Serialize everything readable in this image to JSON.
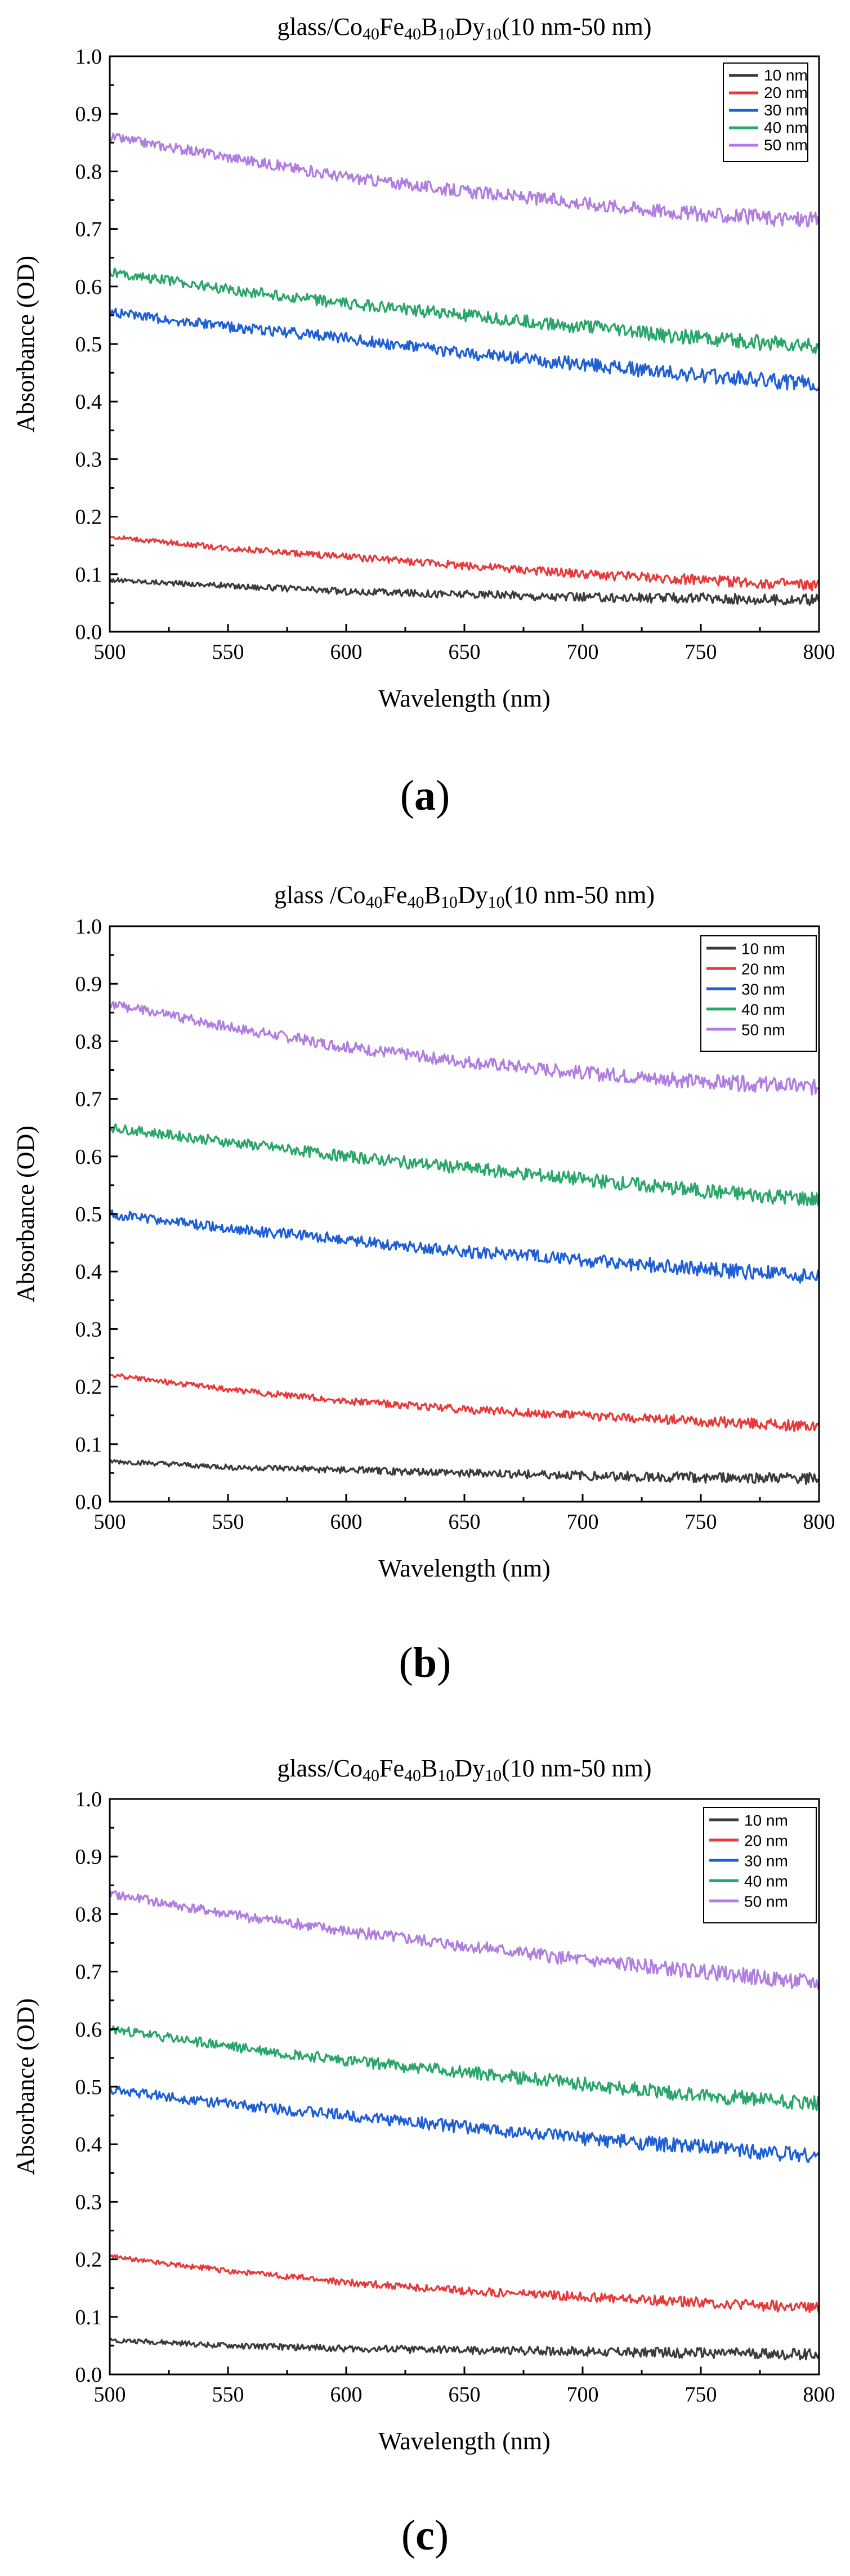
{
  "chart_data": [
    {
      "type": "line",
      "panel_label_letter": "a",
      "title": {
        "prefix": "glass/Co",
        "s1": "40",
        "t1": "Fe",
        "s2": "40",
        "t2": "B",
        "s3": "10",
        "t3": "Dy",
        "s4": "10",
        "suffix": "(10 nm-50 nm)"
      },
      "xlabel": "Wavelength (nm)",
      "ylabel": "Absorbance (OD)",
      "xlim": [
        500,
        800
      ],
      "ylim": [
        0.0,
        1.0
      ],
      "xticks": [
        "500",
        "550",
        "600",
        "650",
        "700",
        "750",
        "800"
      ],
      "yticks": [
        "0.0",
        "0.1",
        "0.2",
        "0.3",
        "0.4",
        "0.5",
        "0.6",
        "0.7",
        "0.8",
        "0.9",
        "1.0"
      ],
      "legend": "top-right",
      "series": [
        {
          "name": "10 nm",
          "color": "#3b3b3b",
          "x": [
            500,
            550,
            600,
            650,
            700,
            750,
            800
          ],
          "y": [
            0.09,
            0.08,
            0.07,
            0.065,
            0.06,
            0.058,
            0.055
          ]
        },
        {
          "name": "20 nm",
          "color": "#e8393a",
          "x": [
            500,
            550,
            600,
            650,
            700,
            750,
            800
          ],
          "y": [
            0.165,
            0.145,
            0.13,
            0.115,
            0.1,
            0.09,
            0.08
          ]
        },
        {
          "name": "30 nm",
          "color": "#1f5fd6",
          "x": [
            500,
            550,
            600,
            650,
            700,
            750,
            800
          ],
          "y": [
            0.555,
            0.53,
            0.51,
            0.485,
            0.465,
            0.445,
            0.43
          ]
        },
        {
          "name": "40 nm",
          "color": "#2aa66a",
          "x": [
            500,
            550,
            600,
            650,
            700,
            750,
            800
          ],
          "y": [
            0.625,
            0.595,
            0.57,
            0.55,
            0.53,
            0.51,
            0.495
          ]
        },
        {
          "name": "50 nm",
          "color": "#b07de0",
          "x": [
            500,
            550,
            600,
            650,
            700,
            750,
            800
          ],
          "y": [
            0.86,
            0.825,
            0.79,
            0.765,
            0.745,
            0.725,
            0.715
          ]
        }
      ]
    },
    {
      "type": "line",
      "panel_label_letter": "b",
      "title": {
        "prefix": "glass /Co",
        "s1": "40",
        "t1": "Fe",
        "s2": "40",
        "t2": "B",
        "s3": "10",
        "t3": "Dy",
        "s4": "10",
        "suffix": "(10 nm-50 nm)"
      },
      "xlabel": "Wavelength (nm)",
      "ylabel": "Absorbance (OD)",
      "xlim": [
        500,
        800
      ],
      "ylim": [
        0.0,
        1.0
      ],
      "xticks": [
        "500",
        "550",
        "600",
        "650",
        "700",
        "750",
        "800"
      ],
      "yticks": [
        "0.0",
        "0.1",
        "0.2",
        "0.3",
        "0.4",
        "0.5",
        "0.6",
        "0.7",
        "0.8",
        "0.9",
        "1.0"
      ],
      "legend": "top-right",
      "series": [
        {
          "name": "10 nm",
          "color": "#3b3b3b",
          "x": [
            500,
            550,
            600,
            650,
            700,
            750,
            800
          ],
          "y": [
            0.07,
            0.06,
            0.055,
            0.05,
            0.045,
            0.042,
            0.04
          ]
        },
        {
          "name": "20 nm",
          "color": "#e8393a",
          "x": [
            500,
            550,
            600,
            650,
            700,
            750,
            800
          ],
          "y": [
            0.22,
            0.195,
            0.175,
            0.16,
            0.15,
            0.14,
            0.13
          ]
        },
        {
          "name": "30 nm",
          "color": "#1f5fd6",
          "x": [
            500,
            550,
            600,
            650,
            700,
            750,
            800
          ],
          "y": [
            0.5,
            0.475,
            0.455,
            0.435,
            0.42,
            0.405,
            0.39
          ]
        },
        {
          "name": "40 nm",
          "color": "#2aa66a",
          "x": [
            500,
            550,
            600,
            650,
            700,
            750,
            800
          ],
          "y": [
            0.65,
            0.625,
            0.6,
            0.58,
            0.56,
            0.54,
            0.525
          ]
        },
        {
          "name": "50 nm",
          "color": "#b07de0",
          "x": [
            500,
            550,
            600,
            650,
            700,
            750,
            800
          ],
          "y": [
            0.865,
            0.825,
            0.79,
            0.765,
            0.745,
            0.73,
            0.72
          ]
        }
      ]
    },
    {
      "type": "line",
      "panel_label_letter": "c",
      "title": {
        "prefix": "glass/Co",
        "s1": "40",
        "t1": "Fe",
        "s2": "40",
        "t2": "B",
        "s3": "10",
        "t3": "Dy",
        "s4": "10",
        "suffix": "(10 nm-50 nm)"
      },
      "xlabel": "Wavelength (nm)",
      "ylabel": "Absorbance (OD)",
      "xlim": [
        500,
        800
      ],
      "ylim": [
        0.0,
        1.0
      ],
      "xticks": [
        "500",
        "550",
        "600",
        "650",
        "700",
        "750",
        "800"
      ],
      "yticks": [
        "0.0",
        "0.1",
        "0.2",
        "0.3",
        "0.4",
        "0.5",
        "0.6",
        "0.7",
        "0.8",
        "0.9",
        "1.0"
      ],
      "legend": "top-right",
      "series": [
        {
          "name": "10 nm",
          "color": "#3b3b3b",
          "x": [
            500,
            550,
            600,
            650,
            700,
            750,
            800
          ],
          "y": [
            0.06,
            0.05,
            0.045,
            0.042,
            0.04,
            0.037,
            0.035
          ]
        },
        {
          "name": "20 nm",
          "color": "#e8393a",
          "x": [
            500,
            550,
            600,
            650,
            700,
            750,
            800
          ],
          "y": [
            0.205,
            0.18,
            0.16,
            0.145,
            0.135,
            0.125,
            0.115
          ]
        },
        {
          "name": "30 nm",
          "color": "#1f5fd6",
          "x": [
            500,
            550,
            600,
            650,
            700,
            750,
            800
          ],
          "y": [
            0.495,
            0.47,
            0.45,
            0.43,
            0.41,
            0.395,
            0.38
          ]
        },
        {
          "name": "40 nm",
          "color": "#2aa66a",
          "x": [
            500,
            550,
            600,
            650,
            700,
            750,
            800
          ],
          "y": [
            0.6,
            0.57,
            0.545,
            0.525,
            0.505,
            0.485,
            0.47
          ]
        },
        {
          "name": "50 nm",
          "color": "#b07de0",
          "x": [
            500,
            550,
            600,
            650,
            700,
            750,
            800
          ],
          "y": [
            0.835,
            0.8,
            0.77,
            0.745,
            0.72,
            0.7,
            0.68
          ]
        }
      ]
    }
  ]
}
